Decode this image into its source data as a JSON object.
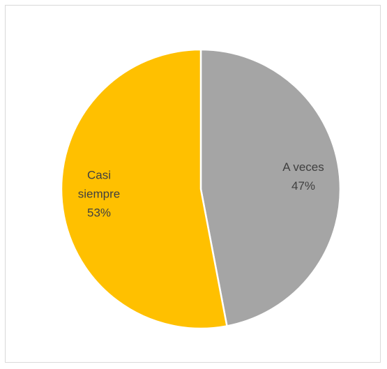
{
  "chart_data": {
    "type": "pie",
    "slices": [
      {
        "category": "A veces",
        "value": 47,
        "percent_label": "47%",
        "color": "#a5a5a5"
      },
      {
        "category": "Casi siempre",
        "value": 53,
        "percent_label": "53%",
        "color": "#ffc000"
      }
    ],
    "start": "12 o'clock, clockwise",
    "slice_border_color": "#ffffff",
    "labels_inside": true,
    "legend": "none"
  }
}
